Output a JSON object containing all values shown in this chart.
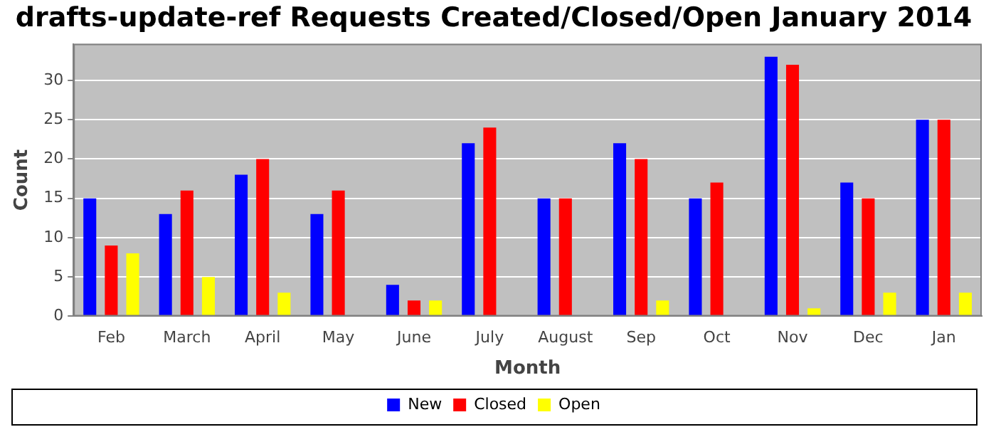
{
  "chart_data": {
    "type": "bar",
    "title": "drafts-update-ref Requests Created/Closed/Open January 2014",
    "xlabel": "Month",
    "ylabel": "Count",
    "categories": [
      "Feb",
      "March",
      "April",
      "May",
      "June",
      "July",
      "August",
      "Sep",
      "Oct",
      "Nov",
      "Dec",
      "Jan"
    ],
    "series": [
      {
        "name": "New",
        "color": "#0000ff",
        "values": [
          15,
          13,
          18,
          13,
          4,
          22,
          15,
          22,
          15,
          33,
          17,
          25
        ]
      },
      {
        "name": "Closed",
        "color": "#ff0000",
        "values": [
          9,
          16,
          20,
          16,
          2,
          24,
          15,
          20,
          17,
          32,
          15,
          25
        ]
      },
      {
        "name": "Open",
        "color": "#ffff00",
        "values": [
          8,
          5,
          3,
          0,
          2,
          0,
          0,
          2,
          0,
          1,
          3,
          3
        ]
      }
    ],
    "ylim": [
      0,
      34.65
    ],
    "yticks": [
      0,
      5,
      10,
      15,
      20,
      25,
      30
    ],
    "grid": "y",
    "legend": "bottom"
  }
}
